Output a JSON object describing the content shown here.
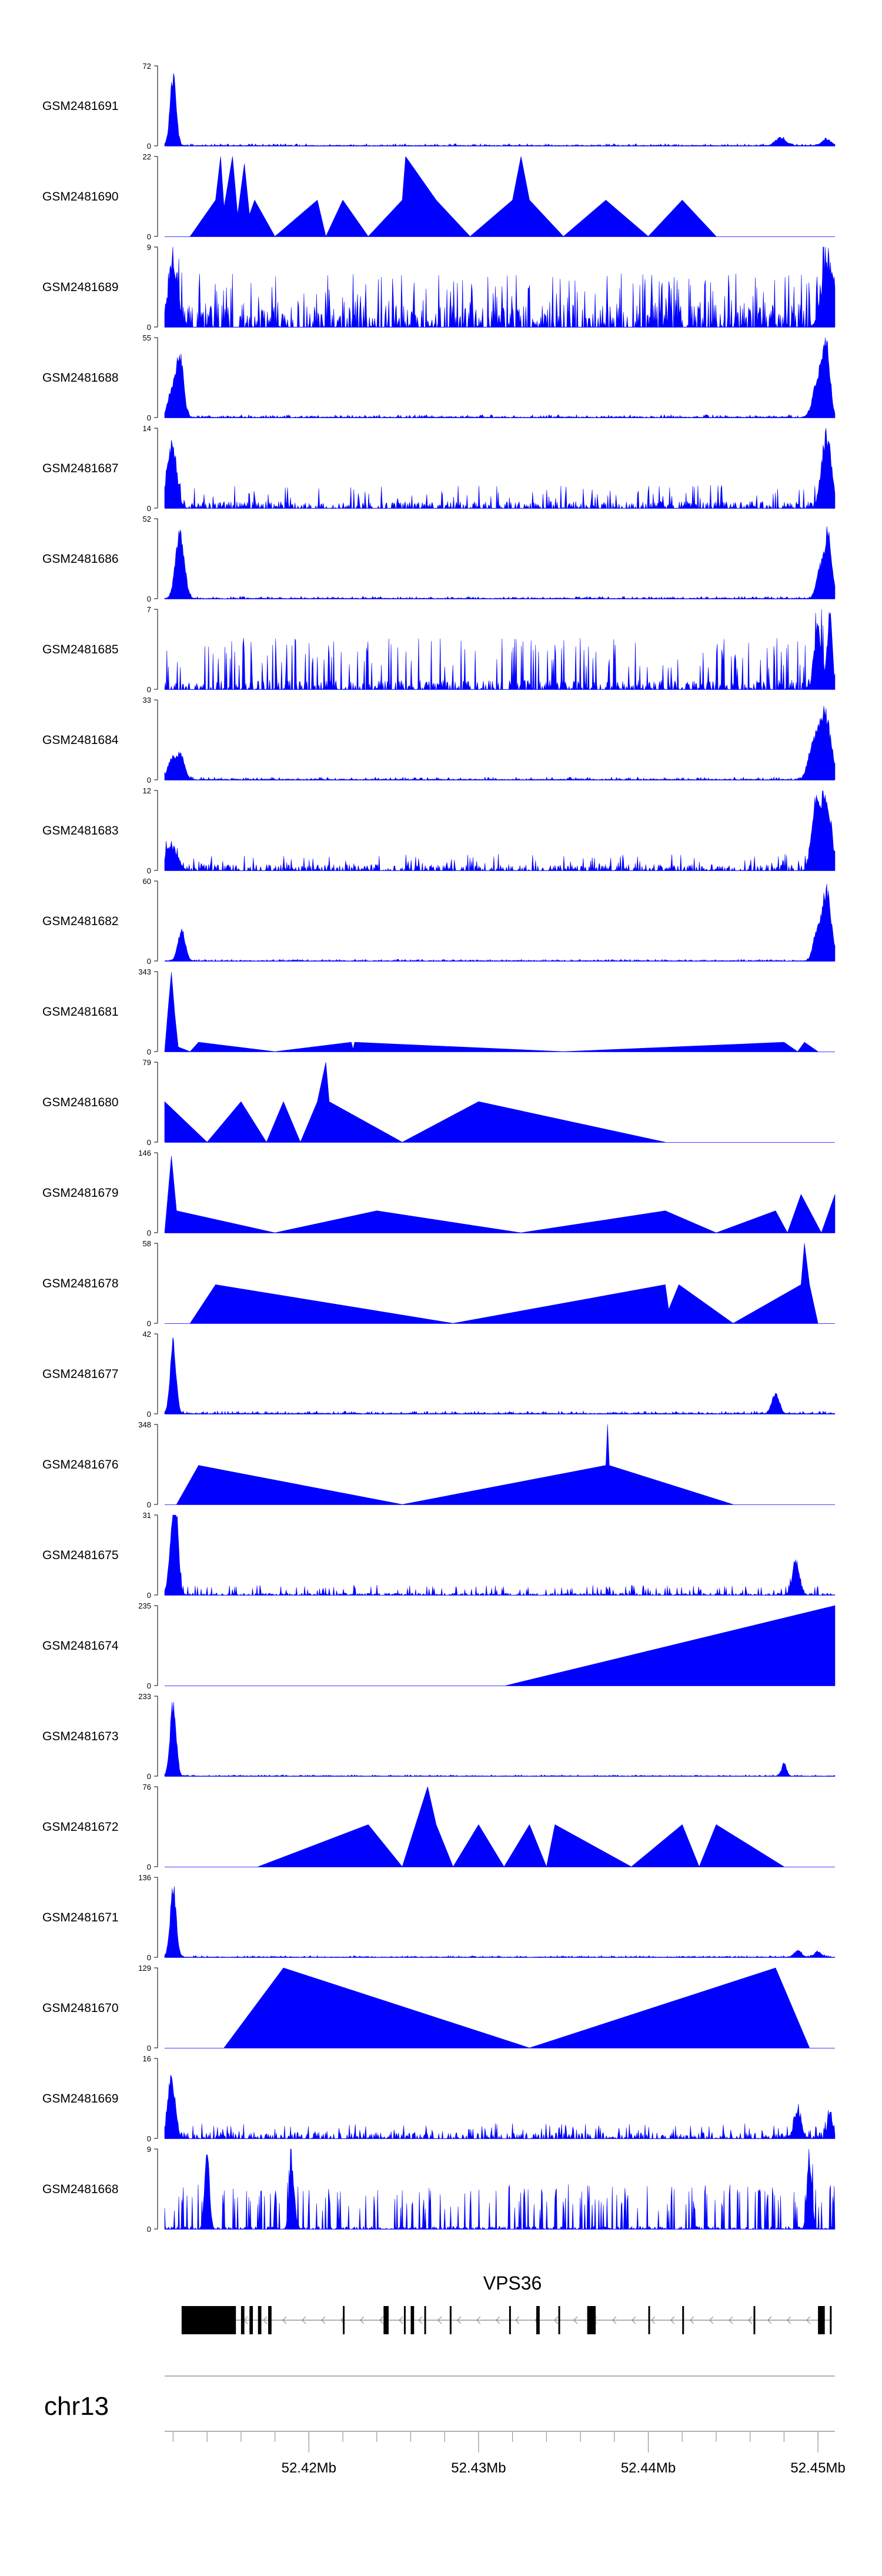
{
  "colors": {
    "signal": "#0000ff",
    "axis": "#000000",
    "gene": "#000000",
    "intron": "#808080",
    "baseline": "#999999"
  },
  "chart_data": {
    "type": "area",
    "chromosome": "chr13",
    "x_range": [
      52.4115,
      52.451
    ],
    "x_unit": "Mb",
    "x_ticks": [
      {
        "pos": 52.42,
        "label": "52.42Mb"
      },
      {
        "pos": 52.43,
        "label": "52.43Mb"
      },
      {
        "pos": 52.44,
        "label": "52.44Mb"
      },
      {
        "pos": 52.45,
        "label": "52.45Mb"
      }
    ],
    "x_minor_ticks": [
      52.412,
      52.414,
      52.416,
      52.418,
      52.42,
      52.422,
      52.424,
      52.426,
      52.428,
      52.43,
      52.432,
      52.434,
      52.436,
      52.438,
      52.44,
      52.442,
      52.444,
      52.446,
      52.448,
      52.45
    ],
    "tracks": [
      {
        "name": "GSM2481691",
        "ymax": "72",
        "style": "dense",
        "peaks": [
          [
            52.412,
            70,
            0.00025
          ],
          [
            52.4478,
            8,
            0.0004
          ],
          [
            52.4505,
            6,
            0.0004
          ]
        ],
        "noise": 2
      },
      {
        "name": "GSM2481690",
        "ymax": "22",
        "style": "sparse",
        "points": [
          [
            52.413,
            0
          ],
          [
            52.4145,
            10
          ],
          [
            52.4148,
            22
          ],
          [
            52.415,
            8
          ],
          [
            52.4155,
            22
          ],
          [
            52.4158,
            6
          ],
          [
            52.4162,
            20
          ],
          [
            52.4165,
            6
          ],
          [
            52.4168,
            10
          ],
          [
            52.418,
            0
          ],
          [
            52.4205,
            10
          ],
          [
            52.421,
            0
          ],
          [
            52.422,
            10
          ],
          [
            52.4235,
            0
          ],
          [
            52.4255,
            10
          ],
          [
            52.4257,
            22
          ],
          [
            52.4275,
            10
          ],
          [
            52.4295,
            0
          ],
          [
            52.432,
            10
          ],
          [
            52.4325,
            22
          ],
          [
            52.433,
            10
          ],
          [
            52.435,
            0
          ],
          [
            52.4375,
            10
          ],
          [
            52.44,
            0
          ],
          [
            52.442,
            10
          ],
          [
            52.444,
            0
          ]
        ]
      },
      {
        "name": "GSM2481689",
        "ymax": "9",
        "style": "spiky",
        "base": 2.5,
        "peakprob": 0.14,
        "peakh": 6,
        "peaks": [
          [
            52.412,
            8,
            0.0004
          ],
          [
            52.4506,
            8,
            0.0005
          ]
        ]
      },
      {
        "name": "GSM2481688",
        "ymax": "55",
        "style": "dense",
        "peaks": [
          [
            52.4119,
            20,
            0.0003
          ],
          [
            52.4124,
            48,
            0.0003
          ],
          [
            52.4505,
            52,
            0.0003
          ],
          [
            52.45,
            30,
            0.0004
          ]
        ],
        "noise": 2
      },
      {
        "name": "GSM2481687",
        "ymax": "14",
        "style": "spiky",
        "base": 1.2,
        "peakprob": 0.08,
        "peakh": 4,
        "peaks": [
          [
            52.4119,
            12,
            0.0004
          ],
          [
            52.4505,
            14,
            0.0004
          ]
        ]
      },
      {
        "name": "GSM2481686",
        "ymax": "52",
        "style": "dense",
        "peaks": [
          [
            52.4124,
            50,
            0.00035
          ],
          [
            52.4506,
            48,
            0.0003
          ],
          [
            52.4501,
            20,
            0.0003
          ]
        ],
        "noise": 1.5
      },
      {
        "name": "GSM2481685",
        "ymax": "7",
        "style": "spiky",
        "base": 0.8,
        "peakprob": 0.16,
        "peakh": 4.5,
        "peaks": [
          [
            52.4507,
            7,
            0.0002
          ],
          [
            52.45,
            6,
            0.0003
          ]
        ]
      },
      {
        "name": "GSM2481684",
        "ymax": "33",
        "style": "dense",
        "peaks": [
          [
            52.412,
            10,
            0.0004
          ],
          [
            52.4125,
            9,
            0.0003
          ],
          [
            52.4504,
            30,
            0.0005
          ],
          [
            52.4497,
            14,
            0.0004
          ]
        ],
        "noise": 1.2
      },
      {
        "name": "GSM2481683",
        "ymax": "12",
        "style": "spiky",
        "base": 0.9,
        "peakprob": 0.09,
        "peakh": 2.5,
        "peaks": [
          [
            52.4119,
            4,
            0.0005
          ],
          [
            52.4504,
            12,
            0.0005
          ],
          [
            52.4498,
            8,
            0.0003
          ]
        ]
      },
      {
        "name": "GSM2481682",
        "ymax": "60",
        "style": "dense",
        "peaks": [
          [
            52.4125,
            25,
            0.0003
          ],
          [
            52.4505,
            58,
            0.0004
          ],
          [
            52.4499,
            20,
            0.0003
          ]
        ],
        "noise": 1.3
      },
      {
        "name": "GSM2481681",
        "ymax": "343",
        "style": "sparse",
        "points": [
          [
            52.4115,
            0
          ],
          [
            52.4117,
            180
          ],
          [
            52.4119,
            340
          ],
          [
            52.4121,
            160
          ],
          [
            52.4123,
            20
          ],
          [
            52.413,
            0
          ],
          [
            52.4135,
            40
          ],
          [
            52.418,
            0
          ],
          [
            52.4225,
            40
          ],
          [
            52.4226,
            10
          ],
          [
            52.4227,
            40
          ],
          [
            52.435,
            0
          ],
          [
            52.448,
            40
          ],
          [
            52.4488,
            0
          ],
          [
            52.4492,
            40
          ],
          [
            52.45,
            0
          ]
        ]
      },
      {
        "name": "GSM2481680",
        "ymax": "79",
        "style": "sparse",
        "points": [
          [
            52.4115,
            40
          ],
          [
            52.414,
            0
          ],
          [
            52.416,
            40
          ],
          [
            52.4175,
            0
          ],
          [
            52.4185,
            40
          ],
          [
            52.4195,
            0
          ],
          [
            52.4205,
            40
          ],
          [
            52.421,
            79
          ],
          [
            52.4212,
            40
          ],
          [
            52.4255,
            0
          ],
          [
            52.43,
            40
          ],
          [
            52.441,
            0
          ]
        ]
      },
      {
        "name": "GSM2481679",
        "ymax": "146",
        "style": "sparse",
        "points": [
          [
            52.4115,
            0
          ],
          [
            52.4119,
            140
          ],
          [
            52.4122,
            40
          ],
          [
            52.418,
            0
          ],
          [
            52.424,
            40
          ],
          [
            52.4325,
            0
          ],
          [
            52.441,
            40
          ],
          [
            52.444,
            0
          ],
          [
            52.4475,
            40
          ],
          [
            52.4482,
            0
          ],
          [
            52.449,
            70
          ],
          [
            52.4502,
            0
          ],
          [
            52.451,
            70
          ],
          [
            52.451,
            0
          ]
        ]
      },
      {
        "name": "GSM2481678",
        "ymax": "58",
        "style": "sparse",
        "points": [
          [
            52.413,
            0
          ],
          [
            52.4145,
            28
          ],
          [
            52.4285,
            0
          ],
          [
            52.441,
            28
          ],
          [
            52.4412,
            10
          ],
          [
            52.4418,
            28
          ],
          [
            52.445,
            0
          ],
          [
            52.449,
            28
          ],
          [
            52.4492,
            58
          ],
          [
            52.4495,
            28
          ],
          [
            52.45,
            0
          ]
        ]
      },
      {
        "name": "GSM2481677",
        "ymax": "42",
        "style": "dense",
        "peaks": [
          [
            52.412,
            40,
            0.00025
          ],
          [
            52.4475,
            12,
            0.0003
          ]
        ],
        "noise": 1.5
      },
      {
        "name": "GSM2481676",
        "ymax": "348",
        "style": "sparse",
        "points": [
          [
            52.4122,
            0
          ],
          [
            52.4135,
            170
          ],
          [
            52.4255,
            0
          ],
          [
            52.4375,
            170
          ],
          [
            52.4376,
            348
          ],
          [
            52.4377,
            170
          ],
          [
            52.445,
            0
          ]
        ]
      },
      {
        "name": "GSM2481675",
        "ymax": "31",
        "style": "spiky",
        "base": 0.8,
        "peakprob": 0.12,
        "peakh": 4,
        "peaks": [
          [
            52.412,
            28,
            0.0003
          ],
          [
            52.4122,
            20,
            0.0002
          ],
          [
            52.4487,
            14,
            0.0003
          ]
        ]
      },
      {
        "name": "GSM2481674",
        "ymax": "235",
        "style": "sparse",
        "points": [
          [
            52.4316,
            0
          ],
          [
            52.451,
            235
          ],
          [
            52.451,
            0
          ]
        ]
      },
      {
        "name": "GSM2481673",
        "ymax": "233",
        "style": "dense",
        "peaks": [
          [
            52.412,
            230,
            0.00025
          ],
          [
            52.448,
            40,
            0.0002
          ]
        ],
        "noise": 4
      },
      {
        "name": "GSM2481672",
        "ymax": "76",
        "style": "sparse",
        "points": [
          [
            52.417,
            0
          ],
          [
            52.4235,
            40
          ],
          [
            52.4255,
            0
          ],
          [
            52.427,
            76
          ],
          [
            52.4275,
            40
          ],
          [
            52.4285,
            0
          ],
          [
            52.43,
            40
          ],
          [
            52.4315,
            0
          ],
          [
            52.433,
            40
          ],
          [
            52.434,
            0
          ],
          [
            52.4345,
            40
          ],
          [
            52.439,
            0
          ],
          [
            52.442,
            40
          ],
          [
            52.443,
            0
          ],
          [
            52.444,
            40
          ],
          [
            52.448,
            0
          ]
        ]
      },
      {
        "name": "GSM2481671",
        "ymax": "136",
        "style": "dense",
        "peaks": [
          [
            52.412,
            130,
            0.00025
          ],
          [
            52.4488,
            12,
            0.0003
          ],
          [
            52.45,
            10,
            0.0003
          ]
        ],
        "noise": 3
      },
      {
        "name": "GSM2481670",
        "ymax": "129",
        "style": "sparse",
        "points": [
          [
            52.415,
            0
          ],
          [
            52.4185,
            129
          ],
          [
            52.433,
            0
          ],
          [
            52.4475,
            129
          ],
          [
            52.4495,
            0
          ]
        ]
      },
      {
        "name": "GSM2481669",
        "ymax": "16",
        "style": "spiky",
        "base": 1.2,
        "peakprob": 0.1,
        "peakh": 3,
        "peaks": [
          [
            52.4119,
            14,
            0.0003
          ],
          [
            52.4488,
            6,
            0.0003
          ],
          [
            52.4507,
            6,
            0.0002
          ]
        ]
      },
      {
        "name": "GSM2481668",
        "ymax": "9",
        "style": "spiky",
        "base": 0.3,
        "peakprob": 0.2,
        "peakh": 5,
        "peaks": [
          [
            52.414,
            9,
            0.0002
          ],
          [
            52.419,
            8,
            0.0002
          ],
          [
            52.4495,
            9,
            0.0002
          ]
        ]
      }
    ],
    "gene": {
      "name": "VPS36",
      "strand": "-",
      "start": 52.4125,
      "end": 52.4508,
      "exons": [
        [
          52.4125,
          52.4157
        ],
        [
          52.416,
          52.4162
        ],
        [
          52.4165,
          52.4167
        ],
        [
          52.417,
          52.4172
        ],
        [
          52.4176,
          52.4178
        ],
        [
          52.422,
          52.4221
        ],
        [
          52.4244,
          52.4247
        ],
        [
          52.4256,
          52.4257
        ],
        [
          52.426,
          52.4262
        ],
        [
          52.4268,
          52.4269
        ],
        [
          52.4283,
          52.4284
        ],
        [
          52.4318,
          52.4319
        ],
        [
          52.4334,
          52.4336
        ],
        [
          52.4347,
          52.4348
        ],
        [
          52.4364,
          52.4369
        ],
        [
          52.44,
          52.4401
        ],
        [
          52.442,
          52.4421
        ],
        [
          52.4462,
          52.4463
        ],
        [
          52.45,
          52.4504
        ],
        [
          52.4507,
          52.4508
        ]
      ]
    }
  }
}
